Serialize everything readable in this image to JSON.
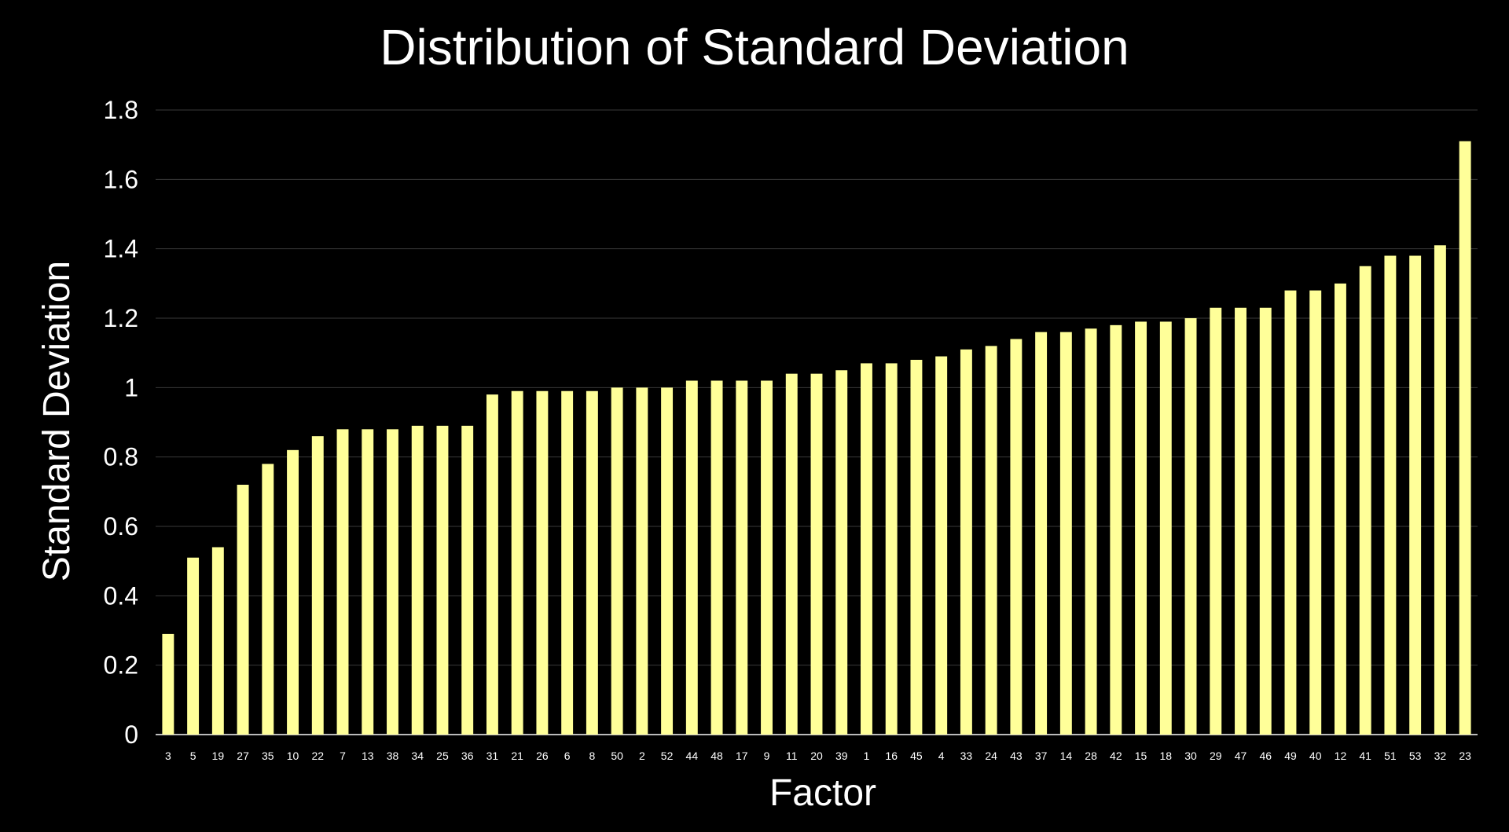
{
  "chart_data": {
    "type": "bar",
    "title": "Distribution of Standard Deviation",
    "xlabel": "Factor",
    "ylabel": "Standard Deviation",
    "ylim": [
      0,
      1.8
    ],
    "yticks": [
      "0",
      "0.2",
      "0.4",
      "0.6",
      "0.8",
      "1",
      "1.2",
      "1.4",
      "1.6",
      "1.8"
    ],
    "grid": true,
    "bar_color": "#FFFF99",
    "background_color": "#000000",
    "grid_color": "#3a3a3a",
    "categories": [
      "3",
      "5",
      "19",
      "27",
      "35",
      "10",
      "22",
      "7",
      "13",
      "38",
      "34",
      "25",
      "36",
      "31",
      "21",
      "26",
      "6",
      "8",
      "50",
      "2",
      "52",
      "44",
      "48",
      "17",
      "9",
      "11",
      "20",
      "39",
      "1",
      "16",
      "45",
      "4",
      "33",
      "24",
      "43",
      "37",
      "14",
      "28",
      "42",
      "15",
      "18",
      "30",
      "29",
      "47",
      "46",
      "49",
      "40",
      "12",
      "41",
      "51",
      "53",
      "32",
      "23"
    ],
    "values": [
      0.29,
      0.51,
      0.54,
      0.72,
      0.78,
      0.82,
      0.86,
      0.88,
      0.88,
      0.88,
      0.89,
      0.89,
      0.89,
      0.98,
      0.99,
      0.99,
      0.99,
      0.99,
      1.0,
      1.0,
      1.0,
      1.02,
      1.02,
      1.02,
      1.02,
      1.04,
      1.04,
      1.05,
      1.07,
      1.07,
      1.08,
      1.09,
      1.11,
      1.12,
      1.14,
      1.16,
      1.16,
      1.17,
      1.18,
      1.19,
      1.19,
      1.2,
      1.23,
      1.23,
      1.23,
      1.28,
      1.28,
      1.3,
      1.35,
      1.38,
      1.38,
      1.41,
      1.71
    ]
  }
}
